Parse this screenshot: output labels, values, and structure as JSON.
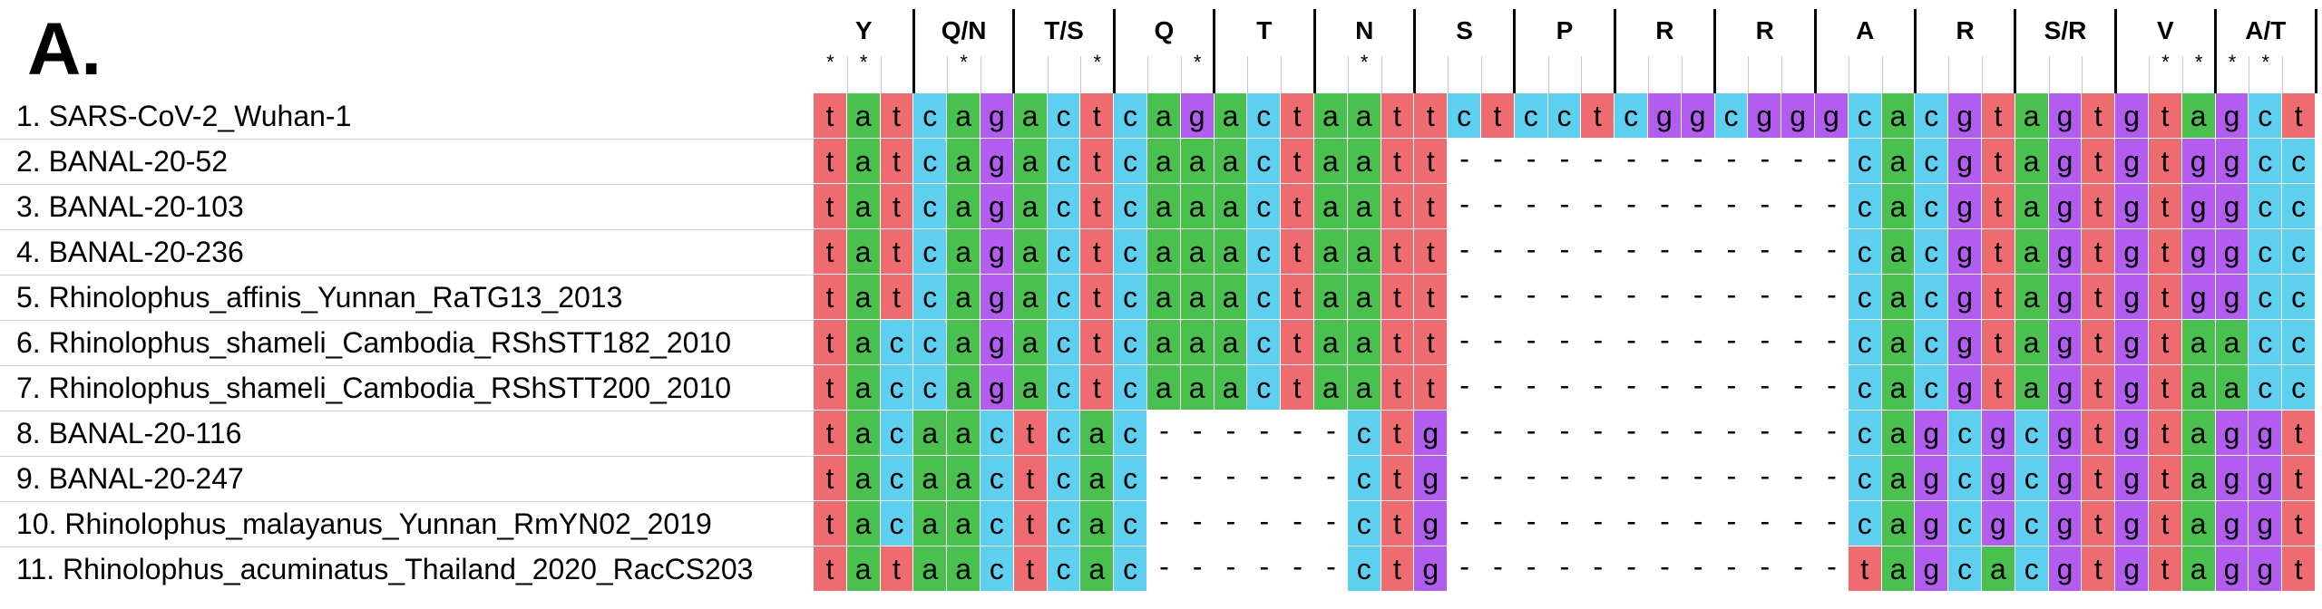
{
  "panel_label": "A.",
  "colors": {
    "t": "#ee6b6f",
    "a": "#4ac14e",
    "c": "#5dd0f0",
    "g": "#b25df0"
  },
  "codons": [
    "Y",
    "Q/N",
    "T/S",
    "Q",
    "T",
    "N",
    "S",
    "P",
    "R",
    "R",
    "A",
    "R",
    "S/R",
    "V",
    "A/T"
  ],
  "star_columns": [
    1,
    2,
    5,
    9,
    12,
    17,
    41,
    42,
    43,
    44
  ],
  "sequences": [
    {
      "label": "1. SARS-CoV-2_Wuhan-1",
      "seq": "tatcagactcagactaattctcctcggcgggcacgtagtgtagct"
    },
    {
      "label": "2. BANAL-20-52",
      "seq": "tatcagactcaaactaatt------------cacgtagtgtggcc"
    },
    {
      "label": "3. BANAL-20-103",
      "seq": "tatcagactcaaactaatt------------cacgtagtgtggcc"
    },
    {
      "label": "4. BANAL-20-236",
      "seq": "tatcagactcaaactaatt------------cacgtagtgtggcc"
    },
    {
      "label": "5. Rhinolophus_affinis_Yunnan_RaTG13_2013",
      "seq": "tatcagactcaaactaatt------------cacgtagtgtggcc"
    },
    {
      "label": "6. Rhinolophus_shameli_Cambodia_RShSTT182_2010",
      "seq": "taccagactcaaactaatt------------cacgtagtgtaacc"
    },
    {
      "label": "7. Rhinolophus_shameli_Cambodia_RShSTT200_2010",
      "seq": "taccagactcaaactaatt------------cacgtagtgtaacc"
    },
    {
      "label": "8. BANAL-20-116",
      "seq": "tacaactcac------ctg------------cagcgcgtgtaggt"
    },
    {
      "label": "9. BANAL-20-247",
      "seq": "tacaactcac------ctg------------cagcgcgtgtaggt"
    },
    {
      "label": "10. Rhinolophus_malayanus_Yunnan_RmYN02_2019",
      "seq": "tacaactcac------ctg------------cagcgcgtgtaggt"
    },
    {
      "label": "11. Rhinolophus_acuminatus_Thailand_2020_RacCS203",
      "seq": "tataactcac------ctg------------tagcacgtgtaggt"
    }
  ]
}
